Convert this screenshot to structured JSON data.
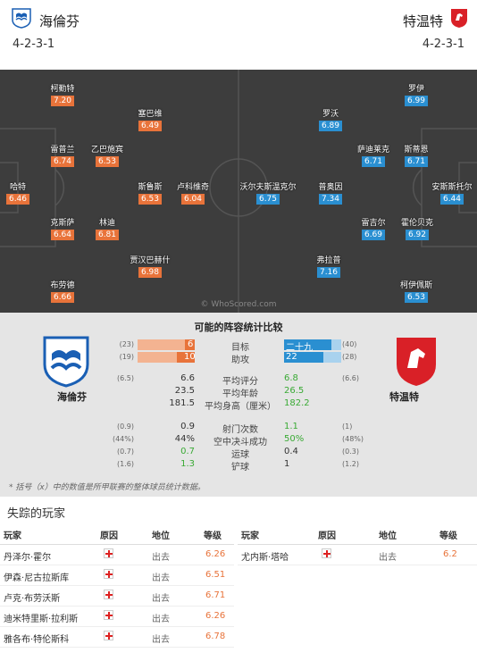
{
  "header": {
    "home_name": "海倫芬",
    "away_name": "特温特",
    "home_formation": "4-2-3-1",
    "away_formation": "4-2-3-1"
  },
  "pitch": {
    "watermark": "© WhoScored.com",
    "home_players": [
      {
        "name": "柯勤特",
        "rating": "7.20"
      },
      {
        "name": "塞巴维",
        "rating": "6.49"
      },
      {
        "name": "雷普兰",
        "rating": "6.74"
      },
      {
        "name": "乙巴施宾",
        "rating": "6.53"
      },
      {
        "name": "哈特",
        "rating": "6.46"
      },
      {
        "name": "斯鲁斯",
        "rating": "6.53"
      },
      {
        "name": "卢科维奇",
        "rating": "6.04"
      },
      {
        "name": "克斯萨",
        "rating": "6.64"
      },
      {
        "name": "林迪",
        "rating": "6.81"
      },
      {
        "name": "贾汉巴赫什",
        "rating": "6.98"
      },
      {
        "name": "布劳德",
        "rating": "6.66"
      }
    ],
    "away_players": [
      {
        "name": "罗伊",
        "rating": "6.99"
      },
      {
        "name": "罗沃",
        "rating": "6.89"
      },
      {
        "name": "萨迪莱克",
        "rating": "6.71"
      },
      {
        "name": "斯蒂恩",
        "rating": "6.71"
      },
      {
        "name": "沃尔夫斯温克尔",
        "rating": "6.75"
      },
      {
        "name": "普奥因",
        "rating": "7.34"
      },
      {
        "name": "安斯斯托尔",
        "rating": "6.44"
      },
      {
        "name": "雷吉尔",
        "rating": "6.69"
      },
      {
        "name": "霍伦贝克",
        "rating": "6.92"
      },
      {
        "name": "弗拉普",
        "rating": "7.16"
      },
      {
        "name": "柯伊佩斯",
        "rating": "6.53"
      }
    ]
  },
  "compare": {
    "title": "可能的阵容统计比较",
    "home_name": "海倫芬",
    "away_name": "特温特",
    "footnote": "* 括号（x）中的数值是所甲联赛的整体球员统计数据。",
    "bar_rows": [
      {
        "label": "目标",
        "lprev": "(23)",
        "lval": "6",
        "rval": "二十九",
        "rprev": "(40)",
        "lfrac": 0.17,
        "rfrac": 0.83
      },
      {
        "label": "助攻",
        "lprev": "(19)",
        "lval": "10",
        "rval": "22",
        "rprev": "(28)",
        "lfrac": 0.31,
        "rfrac": 0.69
      }
    ],
    "stat_rows": [
      {
        "label": "平均评分",
        "lprev": "(6.5)",
        "lval": "6.6",
        "rval": "6.8",
        "rprev": "(6.6)",
        "good": "right"
      },
      {
        "label": "平均年龄",
        "lprev": "",
        "lval": "23.5",
        "rval": "26.5",
        "rprev": "",
        "good": "right"
      },
      {
        "label": "平均身高（厘米）",
        "lprev": "",
        "lval": "181.5",
        "rval": "182.2",
        "rprev": "",
        "good": "right"
      },
      {
        "label": "射门次数",
        "lprev": "(0.9)",
        "lval": "0.9",
        "rval": "1.1",
        "rprev": "(1)",
        "good": "right"
      },
      {
        "label": "空中决斗成功",
        "lprev": "(44%)",
        "lval": "44%",
        "rval": "50%",
        "rprev": "(48%)",
        "good": "right"
      },
      {
        "label": "运球",
        "lprev": "(0.7)",
        "lval": "0.7",
        "rval": "0.4",
        "rprev": "(0.3)",
        "good": "left"
      },
      {
        "label": "铲球",
        "lprev": "(1.6)",
        "lval": "1.3",
        "rval": "1",
        "rprev": "(1.2)",
        "good": "left"
      }
    ]
  },
  "missing": {
    "title": "失踪的玩家",
    "headers": {
      "player": "玩家",
      "reason": "原因",
      "status": "地位",
      "rating": "等级"
    },
    "home": [
      {
        "player": "丹泽尔·霍尔",
        "status": "出去",
        "rating": "6.26"
      },
      {
        "player": "伊森·尼古拉斯库",
        "status": "出去",
        "rating": "6.51"
      },
      {
        "player": "卢克·布劳沃斯",
        "status": "出去",
        "rating": "6.71"
      },
      {
        "player": "迪米特里斯·拉利斯",
        "status": "出去",
        "rating": "6.26"
      },
      {
        "player": "雅各布·特伦斯科",
        "status": "出去",
        "rating": "6.78"
      }
    ],
    "away": [
      {
        "player": "尤内斯·塔哈",
        "status": "出去",
        "rating": "6.2"
      }
    ]
  },
  "colors": {
    "home": "#e8733a",
    "away": "#2a8fd1",
    "good": "#3aaa35",
    "pitch": "#3d3d3d"
  }
}
